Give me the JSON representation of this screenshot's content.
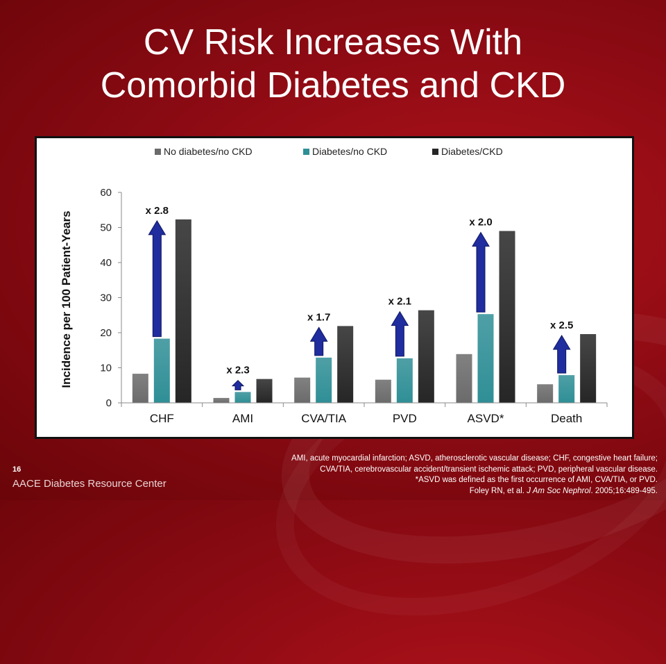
{
  "slide": {
    "title_line1": "CV Risk Increases With",
    "title_line2": "Comorbid Diabetes and CKD",
    "page_number": "16",
    "organization": "AACE Diabetes Resource Center",
    "footnote_line1": "AMI, acute myocardial infarction; ASVD, atherosclerotic vascular disease; CHF,  congestive heart failure;",
    "footnote_line2": "CVA/TIA,  cerebrovascular accident/transient ischemic attack; PVD, peripheral vascular disease.",
    "footnote_line3": "*ASVD was defined as the first occurrence of AMI, CVA/TIA,  or PVD.",
    "citation_prefix": "Foley RN, et al. ",
    "citation_journal": "J Am Soc Nephrol",
    "citation_suffix": ". 2005;16:489-495."
  },
  "chart_data": {
    "type": "bar",
    "ylabel": "Incidence per 100 Patient-Years",
    "ylim": [
      0,
      60
    ],
    "yticks": [
      0,
      10,
      20,
      30,
      40,
      50,
      60
    ],
    "categories": [
      "CHF",
      "AMI",
      "CVA/TIA",
      "PVD",
      "ASVD*",
      "Death"
    ],
    "series": [
      {
        "name": "No diabetes/no CKD",
        "values": [
          8.3,
          1.4,
          7.2,
          6.6,
          13.9,
          5.3
        ],
        "color": "#6b6b6b"
      },
      {
        "name": "Diabetes/no CKD",
        "values": [
          18.3,
          3.1,
          12.9,
          12.7,
          25.3,
          7.9
        ],
        "color": "#2f8f96"
      },
      {
        "name": "Diabetes/CKD",
        "values": [
          52.3,
          6.8,
          21.9,
          26.4,
          49.0,
          19.6
        ],
        "color": "#262626"
      }
    ],
    "annotations": [
      "x 2.8",
      "x 2.3",
      "x 1.7",
      "x 2.1",
      "x 2.0",
      "x 2.5"
    ],
    "legend_position": "top",
    "grid": false,
    "arrow_color": "#1f2d9e"
  }
}
